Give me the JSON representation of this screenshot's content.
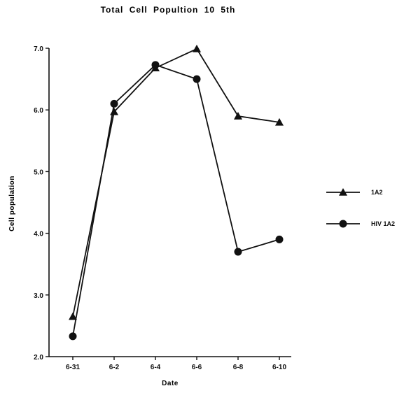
{
  "chart_data": {
    "type": "line",
    "title": "Total Cell Popultion 10 5th",
    "xlabel": "Date",
    "ylabel": "Cell population",
    "categories": [
      "6-31",
      "6-2",
      "6-4",
      "6-6",
      "6-8",
      "6-10"
    ],
    "ylim": [
      2.0,
      7.0
    ],
    "yticks": [
      "2.0",
      "3.0",
      "4.0",
      "5.0",
      "6.0",
      "7.0"
    ],
    "grid": false,
    "legend_position": "right",
    "series": [
      {
        "name": "1A2",
        "marker": "triangle",
        "values": [
          2.65,
          5.97,
          6.68,
          6.99,
          5.9,
          5.8
        ]
      },
      {
        "name": "HIV 1A2",
        "marker": "circle",
        "values": [
          2.33,
          6.1,
          6.73,
          6.5,
          3.7,
          3.9
        ]
      }
    ]
  },
  "colors": {
    "line": "#111111",
    "background": "#ffffff"
  }
}
